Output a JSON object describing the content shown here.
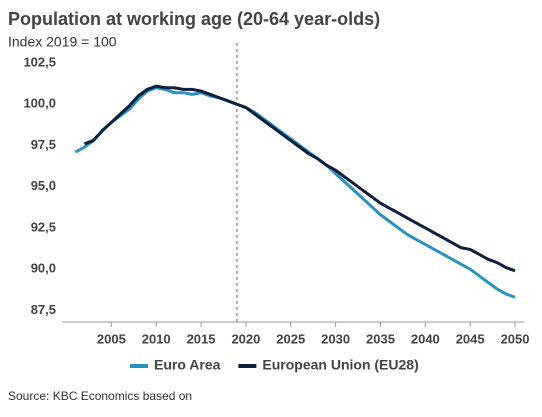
{
  "chart_data": {
    "type": "line",
    "title": "Population at working age (20-64 year-olds)",
    "subtitle": "Index 2019 = 100",
    "source": "Source: KBC Economics based on",
    "x": [
      2001,
      2002,
      2003,
      2004,
      2005,
      2006,
      2007,
      2008,
      2009,
      2010,
      2011,
      2012,
      2013,
      2014,
      2015,
      2016,
      2017,
      2018,
      2019,
      2020,
      2021,
      2022,
      2023,
      2024,
      2025,
      2026,
      2027,
      2028,
      2029,
      2030,
      2031,
      2032,
      2033,
      2034,
      2035,
      2036,
      2037,
      2038,
      2039,
      2040,
      2041,
      2042,
      2043,
      2044,
      2045,
      2046,
      2047,
      2048,
      2049,
      2050
    ],
    "series": [
      {
        "name": "Euro Area",
        "color": "#2a92bf",
        "values": [
          97.1,
          97.4,
          97.8,
          98.4,
          98.9,
          99.3,
          99.7,
          100.3,
          100.8,
          101.0,
          100.9,
          100.7,
          100.7,
          100.6,
          100.7,
          100.5,
          100.4,
          100.2,
          100.0,
          99.8,
          99.5,
          99.1,
          98.7,
          98.3,
          97.9,
          97.5,
          97.1,
          96.7,
          96.3,
          95.8,
          95.3,
          94.8,
          94.3,
          93.8,
          93.3,
          92.9,
          92.5,
          92.1,
          91.8,
          91.5,
          91.2,
          90.9,
          90.6,
          90.3,
          90.0,
          89.6,
          89.2,
          88.8,
          88.5,
          88.3
        ]
      },
      {
        "name": "European Union (EU28)",
        "color": "#0d1f3c",
        "values": [
          null,
          97.6,
          97.8,
          98.4,
          98.9,
          99.4,
          99.9,
          100.5,
          100.9,
          101.1,
          101.0,
          101.0,
          100.9,
          100.9,
          100.8,
          100.6,
          100.4,
          100.2,
          100.0,
          99.8,
          99.4,
          99.0,
          98.6,
          98.2,
          97.8,
          97.4,
          97.0,
          96.7,
          96.3,
          96.0,
          95.6,
          95.2,
          94.8,
          94.4,
          94.0,
          93.7,
          93.4,
          93.1,
          92.8,
          92.5,
          92.2,
          91.9,
          91.6,
          91.3,
          91.2,
          90.9,
          90.6,
          90.4,
          90.1,
          89.9
        ]
      }
    ],
    "xlim": [
      1999.5,
      2051
    ],
    "xticks": [
      2005,
      2010,
      2015,
      2020,
      2025,
      2030,
      2035,
      2040,
      2045,
      2050
    ],
    "ylim": [
      86.8,
      102.5
    ],
    "yticks": [
      {
        "value": 87.5,
        "label": "87,5"
      },
      {
        "value": 90,
        "label": "90,0"
      },
      {
        "value": 92.5,
        "label": "92,5"
      },
      {
        "value": 95,
        "label": "95,0"
      },
      {
        "value": 97.5,
        "label": "97,5"
      },
      {
        "value": 100,
        "label": "100,0"
      },
      {
        "value": 102.5,
        "label": "102,5"
      }
    ],
    "vline": 2019,
    "grid": false,
    "legend": "bottom"
  }
}
